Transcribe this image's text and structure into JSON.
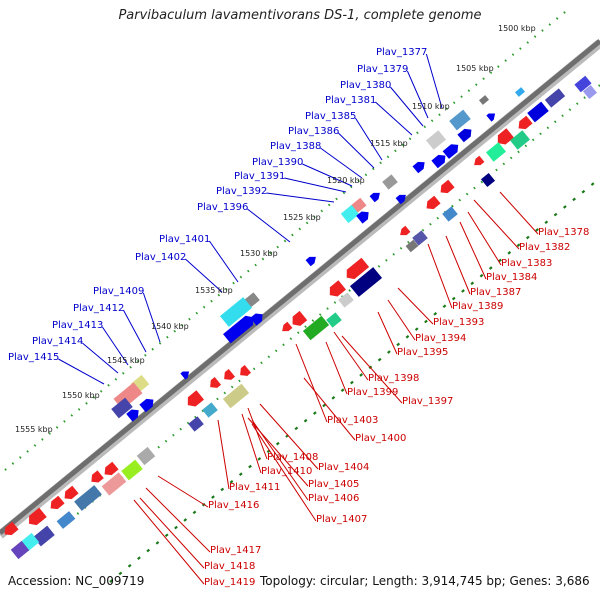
{
  "title": "Parvibaculum lavamentivorans DS-1, complete genome",
  "footer": {
    "accession": "Accession: NC_009719",
    "stats": "Topology: circular; Length: 3,914,745 bp; Genes: 3,686"
  },
  "ticks": [
    "1500 kbp",
    "1505 kbp",
    "1510 kbp",
    "1515 kbp",
    "1520 kbp",
    "1525 kbp",
    "1530 kbp",
    "1535 kbp",
    "1540 kbp",
    "1545 kbp",
    "1550 kbp",
    "1555 kbp"
  ],
  "labels_top": [
    "Plav_1377",
    "Plav_1379",
    "Plav_1380",
    "Plav_1381",
    "Plav_1385",
    "Plav_1386",
    "Plav_1388",
    "Plav_1390",
    "Plav_1391",
    "Plav_1392",
    "Plav_1396",
    "Plav_1401",
    "Plav_1402",
    "Plav_1409",
    "Plav_1412",
    "Plav_1413",
    "Plav_1414",
    "Plav_1415"
  ],
  "labels_bottom": [
    "Plav_1378",
    "Plav_1382",
    "Plav_1383",
    "Plav_1384",
    "Plav_1387",
    "Plav_1389",
    "Plav_1393",
    "Plav_1394",
    "Plav_1395",
    "Plav_1398",
    "Plav_1399",
    "Plav_1397",
    "Plav_1403",
    "Plav_1400",
    "Plav_1404",
    "Plav_1408",
    "Plav_1410",
    "Plav_1405",
    "Plav_1411",
    "Plav_1406",
    "Plav_1407",
    "Plav_1416",
    "Plav_1417",
    "Plav_1418",
    "Plav_1419"
  ],
  "colors": {
    "forward_labels": "#0000cc",
    "reverse_labels": "#cc0000",
    "backbone": "#777777"
  }
}
